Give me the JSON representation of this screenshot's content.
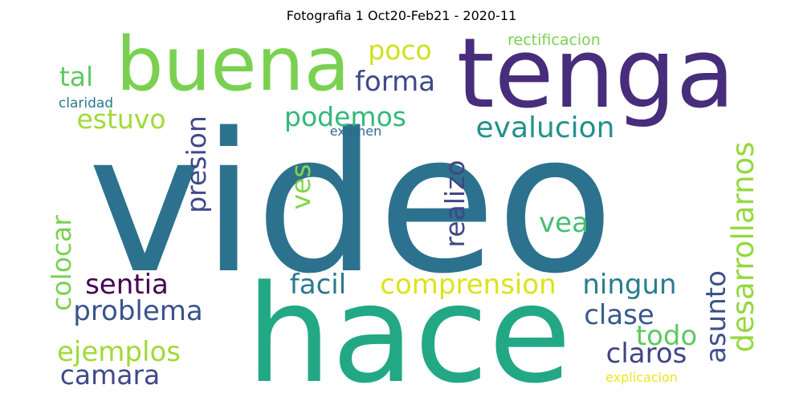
{
  "title": "Fotografia 1 Oct20-Feb21 - 2020-11",
  "words": [
    {
      "text": "video",
      "color": "#2c728e"
    },
    {
      "text": "hace",
      "color": "#22a884"
    },
    {
      "text": "tenga",
      "color": "#472d7b"
    },
    {
      "text": "buena",
      "color": "#7ad151"
    },
    {
      "text": "evalucion",
      "color": "#21918c"
    },
    {
      "text": "desarrollarnos",
      "color": "#95d840"
    },
    {
      "text": "comprension",
      "color": "#dde318"
    },
    {
      "text": "sentia",
      "color": "#440154"
    },
    {
      "text": "problema",
      "color": "#3b528b"
    },
    {
      "text": "podemos",
      "color": "#35b779"
    },
    {
      "text": "forma",
      "color": "#3e4989"
    },
    {
      "text": "presion",
      "color": "#3e4989"
    },
    {
      "text": "realizo",
      "color": "#404688"
    },
    {
      "text": "ningun",
      "color": "#287c8e"
    },
    {
      "text": "facil",
      "color": "#2a788e"
    },
    {
      "text": "colocar",
      "color": "#7ad151"
    },
    {
      "text": "ejemplos",
      "color": "#a0da39"
    },
    {
      "text": "claros",
      "color": "#414487"
    },
    {
      "text": "asunto",
      "color": "#3b528b"
    },
    {
      "text": "clase",
      "color": "#375a8c"
    },
    {
      "text": "todo",
      "color": "#5ec962"
    },
    {
      "text": "estuvo",
      "color": "#a0da39"
    },
    {
      "text": "camara",
      "color": "#3e4989"
    },
    {
      "text": "vea",
      "color": "#44bf70"
    },
    {
      "text": "tal",
      "color": "#5ec962"
    },
    {
      "text": "poco",
      "color": "#d0e11c"
    },
    {
      "text": "ves",
      "color": "#84d44b"
    },
    {
      "text": "rectificacion",
      "color": "#7ad151"
    },
    {
      "text": "claridad",
      "color": "#2a788e"
    },
    {
      "text": "examen",
      "color": "#31688e"
    },
    {
      "text": "explicacion",
      "color": "#f1e51d"
    }
  ]
}
